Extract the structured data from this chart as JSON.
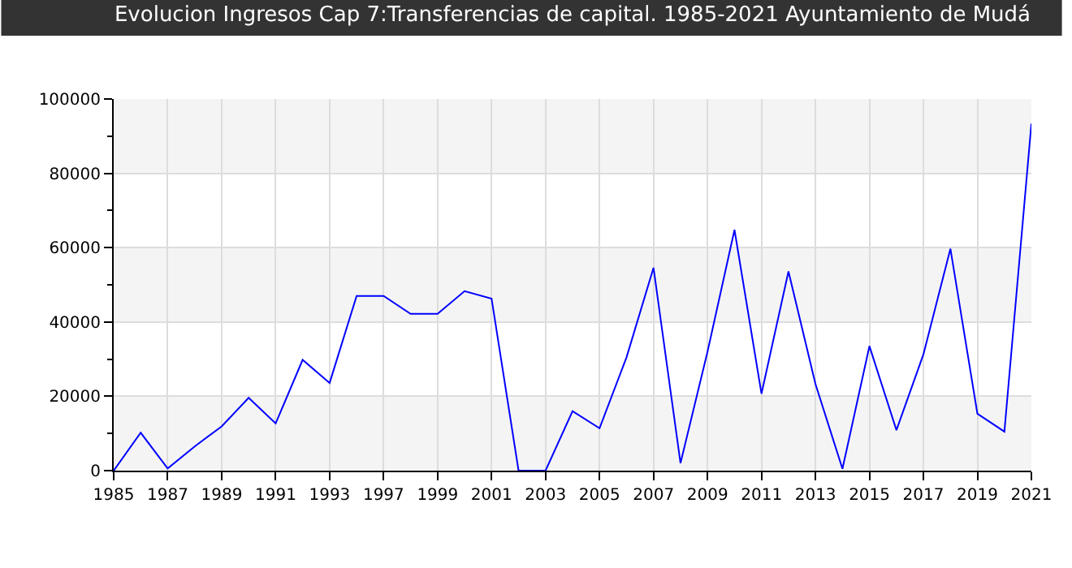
{
  "chart_data": {
    "type": "line",
    "title": "Evolucion Ingresos Cap 7:Transferencias de capital. 1985-2021 Ayuntamiento de Mudá",
    "categories": [
      "1985",
      null,
      "1987",
      null,
      "1989",
      null,
      "1991",
      null,
      "1993",
      null,
      "1997",
      null,
      "1999",
      null,
      "2001",
      null,
      "2003",
      null,
      "2005",
      null,
      "2007",
      null,
      "2009",
      null,
      "2011",
      null,
      "2013",
      null,
      "2015",
      null,
      "2017",
      null,
      "2019",
      null,
      "2021"
    ],
    "series": [
      {
        "color": "#0000ff",
        "values": [
          0,
          10200,
          600,
          6500,
          11900,
          19600,
          12700,
          29800,
          23600,
          47000,
          47000,
          42200,
          42200,
          48300,
          46300,
          0,
          0,
          16000,
          11400,
          30500,
          54600,
          2000,
          32000,
          64800,
          20700,
          53600,
          23300,
          500,
          33500,
          10900,
          31300,
          59700,
          15300,
          10500,
          93400
        ]
      }
    ],
    "ylim": [
      0,
      100000
    ],
    "yticks": [
      0,
      20000,
      40000,
      60000,
      80000,
      100000
    ],
    "bands": [
      {
        "axis": "y",
        "from": 0,
        "to": 20000,
        "color": "#f4f4f4"
      },
      {
        "axis": "y",
        "from": 40000,
        "to": 60000,
        "color": "#f4f4f4"
      },
      {
        "axis": "y",
        "from": 80000,
        "to": 100000,
        "color": "#f4f4f4"
      }
    ],
    "grid": true,
    "legend": false,
    "marker": "none",
    "line_style": "solid"
  }
}
